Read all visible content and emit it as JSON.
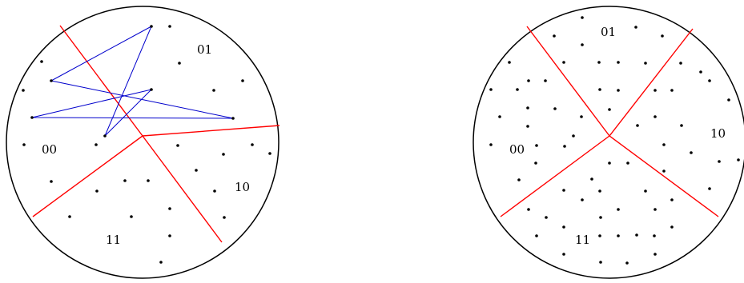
{
  "panels": [
    {
      "id": "left",
      "labels": [
        "01",
        "00",
        "10",
        "11"
      ],
      "colors": {
        "boundary": "#000000",
        "partition": "#ff0000",
        "path": "#0000cc",
        "point": "#000000"
      }
    },
    {
      "id": "right",
      "labels": [
        "01",
        "00",
        "10",
        "11"
      ],
      "colors": {
        "boundary": "#000000",
        "partition": "#ff0000",
        "point": "#000000"
      }
    }
  ]
}
